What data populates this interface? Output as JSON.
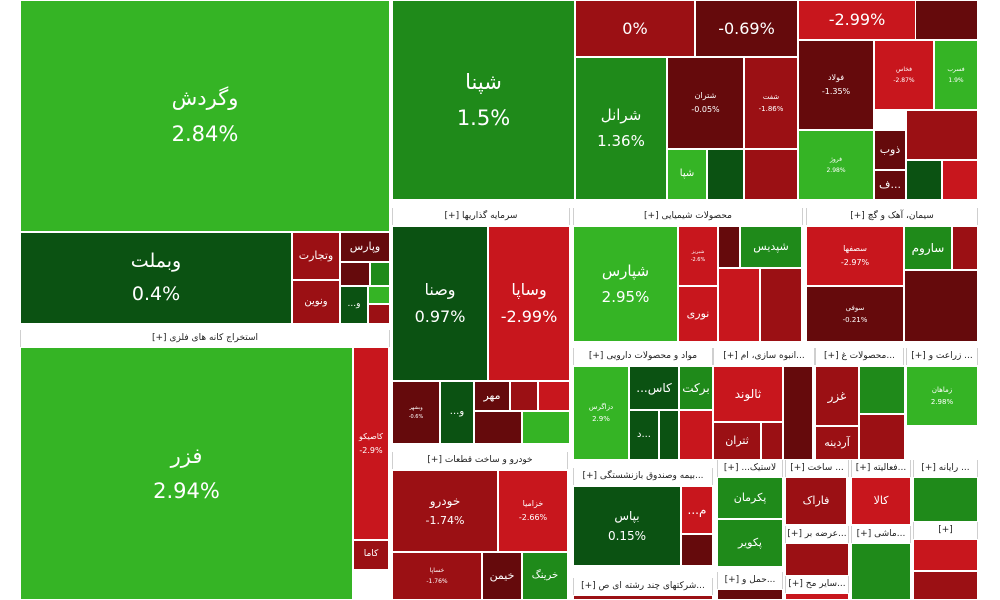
{
  "colors": {
    "bright_green": "#35b425",
    "mid_green": "#1f8a1a",
    "dark_green": "#0b5212",
    "bright_red": "#c8161d",
    "mid_red": "#9b1014",
    "dark_red": "#650a0c",
    "header_bg": "#ffffff",
    "header_text": "#222222"
  },
  "chart_data": {
    "type": "treemap",
    "sections": [
      {
        "label": "[+] استخراج کانه های فلزی"
      },
      {
        "label": "[+] سرمایه گذاریها"
      },
      {
        "label": "[+] محصولات شیمیایی"
      },
      {
        "label": "[+] سیمان، آهک و گچ"
      },
      {
        "label": "[+] خودرو و ساخت قطعات"
      },
      {
        "label": "[+] مواد و محصولات دارویی"
      },
      {
        "label": "[+] انبوه سازی، ام..."
      },
      {
        "label": "[+] محصولات غ..."
      },
      {
        "label": "[+] زراعت و ..."
      },
      {
        "label": "[+] بیمه وصندوق بازنشستگی..."
      },
      {
        "label": "[+] ...لاستیک"
      },
      {
        "label": "[+] ساخت ..."
      },
      {
        "label": "[+] فعالیته..."
      },
      {
        "label": "[+] رایانه ..."
      },
      {
        "label": "[+] شرکتهای چند رشته ای ص..."
      },
      {
        "label": "[+] حمل و..."
      },
      {
        "label": "[+] عرضه بر..."
      },
      {
        "label": "[+] ماشی..."
      },
      {
        "label": "[+] سایر مح..."
      },
      {
        "label": "[+]"
      }
    ],
    "tiles": [
      {
        "name": "وگردش",
        "change": "2.84%",
        "color": "bright_green"
      },
      {
        "name": "وبملت",
        "change": "0.4%",
        "color": "dark_green"
      },
      {
        "name": "وتجارت",
        "change": "",
        "color": "mid_red"
      },
      {
        "name": "وپارس",
        "change": "",
        "color": "dark_red"
      },
      {
        "name": "ونوین",
        "change": "",
        "color": "mid_red"
      },
      {
        "name": "...و",
        "change": "",
        "color": "dark_green"
      },
      {
        "name": "فزر",
        "change": "2.94%",
        "color": "bright_green"
      },
      {
        "name": "کاصیکو",
        "change": "-2.9%",
        "color": "bright_red"
      },
      {
        "name": "کاما",
        "change": "",
        "color": "mid_red"
      },
      {
        "name": "شپنا",
        "change": "1.5%",
        "color": "mid_green"
      },
      {
        "name": "",
        "change": "0%",
        "color": "mid_red"
      },
      {
        "name": "",
        "change": "-0.69%",
        "color": "dark_red"
      },
      {
        "name": "",
        "change": "-2.99%",
        "color": "bright_red"
      },
      {
        "name": "شرانل",
        "change": "1.36%",
        "color": "mid_green"
      },
      {
        "name": "شتران",
        "change": "-0.05%",
        "color": "dark_red"
      },
      {
        "name": "شفت",
        "change": "-1.86%",
        "color": "mid_red"
      },
      {
        "name": "شپا",
        "change": "",
        "color": "bright_green"
      },
      {
        "name": "فولاد",
        "change": "-1.35%",
        "color": "dark_red"
      },
      {
        "name": "فخاس",
        "change": "-2.87%",
        "color": "bright_red"
      },
      {
        "name": "فسرب",
        "change": "1.9%",
        "color": "bright_green"
      },
      {
        "name": "فروژ",
        "change": "2.98%",
        "color": "bright_green"
      },
      {
        "name": "ذوب",
        "change": "",
        "color": "dark_red"
      },
      {
        "name": "ف...",
        "change": "",
        "color": "dark_red"
      },
      {
        "name": "وصنا",
        "change": "0.97%",
        "color": "dark_green"
      },
      {
        "name": "وساپا",
        "change": "-2.99%",
        "color": "bright_red"
      },
      {
        "name": "مهر",
        "change": "",
        "color": "dark_red"
      },
      {
        "name": "وبشهر",
        "change": "-0.6%",
        "color": "dark_red"
      },
      {
        "name": "...و",
        "change": "",
        "color": "dark_green"
      },
      {
        "name": "شپارس",
        "change": "2.95%",
        "color": "bright_green"
      },
      {
        "name": "شپدیس",
        "change": "",
        "color": "mid_green"
      },
      {
        "name": "شبریز",
        "change": "-2.6%",
        "color": "bright_red"
      },
      {
        "name": "نوری",
        "change": "",
        "color": "bright_red"
      },
      {
        "name": "سصفها",
        "change": "-2.97%",
        "color": "bright_red"
      },
      {
        "name": "سوفی",
        "change": "-0.21%",
        "color": "dark_red"
      },
      {
        "name": "ساروم",
        "change": "",
        "color": "mid_green"
      },
      {
        "name": "خودرو",
        "change": "-1.74%",
        "color": "mid_red"
      },
      {
        "name": "خزامیا",
        "change": "-2.66%",
        "color": "bright_red"
      },
      {
        "name": "خساپا",
        "change": "-1.76%",
        "color": "mid_red"
      },
      {
        "name": "خیمن",
        "change": "",
        "color": "dark_red"
      },
      {
        "name": "خرینگ",
        "change": "",
        "color": "mid_green"
      },
      {
        "name": "دزاگرس",
        "change": "2.9%",
        "color": "bright_green"
      },
      {
        "name": "...کاس",
        "change": "",
        "color": "dark_green"
      },
      {
        "name": "برکت",
        "change": "",
        "color": "mid_green"
      },
      {
        "name": "د...",
        "change": "",
        "color": "dark_green"
      },
      {
        "name": "ثالوند",
        "change": "",
        "color": "bright_red"
      },
      {
        "name": "ثتران",
        "change": "",
        "color": "mid_red"
      },
      {
        "name": "غزر",
        "change": "",
        "color": "mid_red"
      },
      {
        "name": "آردینه",
        "change": "",
        "color": "mid_red"
      },
      {
        "name": "زماهان",
        "change": "2.98%",
        "color": "bright_green"
      },
      {
        "name": "بپاس",
        "change": "0.15%",
        "color": "dark_green"
      },
      {
        "name": "...م",
        "change": "",
        "color": "bright_red"
      },
      {
        "name": "پکرمان",
        "change": "",
        "color": "mid_green"
      },
      {
        "name": "پکویر",
        "change": "",
        "color": "mid_green"
      },
      {
        "name": "فاراک",
        "change": "",
        "color": "mid_red"
      },
      {
        "name": "کالا",
        "change": "",
        "color": "bright_red"
      }
    ]
  }
}
